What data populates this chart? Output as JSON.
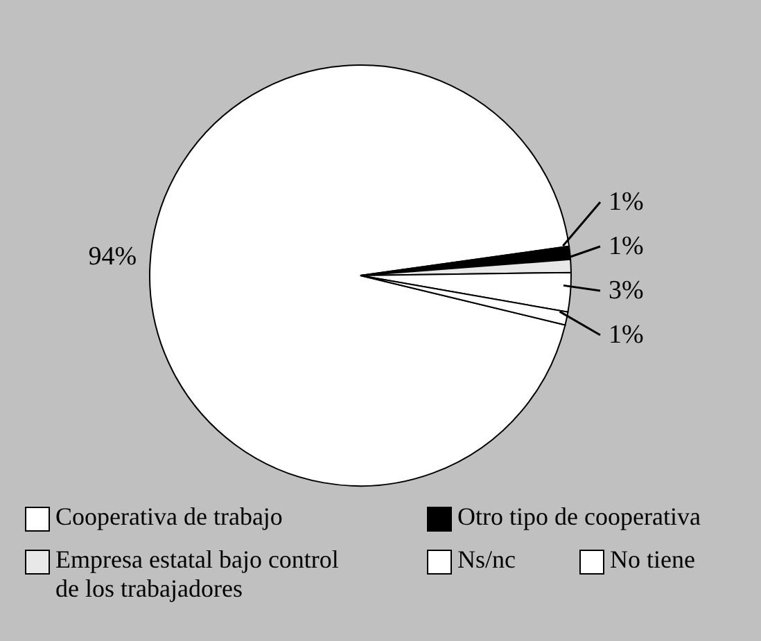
{
  "chart_data": {
    "type": "pie",
    "categories": [
      "Cooperativa de trabajo",
      "Otro tipo de cooperativa",
      "Empresa estatal bajo control de los trabajadores",
      "Ns/nc",
      "No tiene"
    ],
    "values": [
      94,
      1,
      1,
      3,
      1
    ],
    "colors": [
      "#ffffff",
      "#000000",
      "#e8e8e8",
      "#ffffff",
      "#ffffff"
    ],
    "value_labels": [
      "94%",
      "1%",
      "1%",
      "3%",
      "1%"
    ],
    "legend": "bottom"
  }
}
